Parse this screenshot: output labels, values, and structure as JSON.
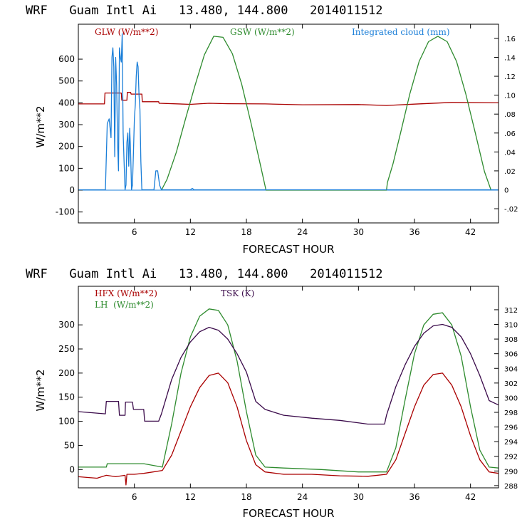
{
  "colors": {
    "red": "#aa0000",
    "green": "#2e8b2e",
    "blue": "#1a7ed8",
    "purple": "#3a0a4a"
  },
  "chart_data": [
    {
      "id": "top",
      "type": "line",
      "title": "WRF   Guam Intl Ai   13.480, 144.800   2014011512",
      "xlabel": "FORECAST HOUR",
      "ylabel": "W/m**2",
      "xlim": [
        0,
        45
      ],
      "ylim": [
        -150,
        760
      ],
      "y2lim": [
        -0.035,
        0.175
      ],
      "xticks": [
        6,
        12,
        18,
        24,
        30,
        36,
        42
      ],
      "yticks": [
        -100,
        0,
        100,
        200,
        300,
        400,
        500,
        600
      ],
      "y2ticks": [
        -0.02,
        0,
        0.02,
        0.04,
        0.06,
        0.08,
        0.1,
        0.12,
        0.14,
        0.16
      ],
      "y2ticklabels": [
        "-.02",
        "0",
        ".02",
        ".04",
        ".06",
        ".08",
        ".10",
        ".12",
        ".14",
        ".16"
      ],
      "legend": [
        {
          "label": "GLW (W/m**2)",
          "color": "#aa0000"
        },
        {
          "label": "GSW (W/m**2)",
          "color": "#2e8b2e"
        },
        {
          "label": "Integrated cloud (mm)",
          "color": "#1a7ed8"
        }
      ],
      "series": [
        {
          "name": "GLW",
          "color": "#aa0000",
          "axis": "left",
          "x": [
            0,
            2.8,
            2.85,
            4.6,
            4.65,
            5.2,
            5.25,
            5.6,
            5.65,
            6.8,
            6.85,
            8.6,
            8.65,
            12,
            14,
            16,
            20,
            24,
            30,
            33,
            36,
            40,
            45
          ],
          "y": [
            395,
            395,
            445,
            445,
            412,
            412,
            448,
            448,
            440,
            440,
            405,
            405,
            398,
            393,
            398,
            396,
            395,
            391,
            392,
            388,
            394,
            402,
            400
          ]
        },
        {
          "name": "GSW",
          "color": "#2e8b2e",
          "axis": "left",
          "x": [
            8.9,
            9.5,
            10.5,
            11.5,
            12.5,
            13.5,
            14.5,
            15.5,
            16.5,
            17.5,
            18.5,
            19.5,
            20.1,
            33.0,
            33.1,
            33.7,
            34.5,
            35.5,
            36.5,
            37.5,
            38.5,
            39.5,
            40.5,
            41.5,
            42.5,
            43.5,
            44.2
          ],
          "y": [
            0,
            50,
            175,
            330,
            480,
            620,
            705,
            700,
            625,
            485,
            305,
            115,
            0,
            0,
            35,
            120,
            260,
            440,
            590,
            680,
            705,
            680,
            590,
            440,
            265,
            85,
            0
          ]
        },
        {
          "name": "Integrated cloud",
          "color": "#1a7ed8",
          "axis": "right",
          "x": [
            0,
            2.9,
            3.1,
            3.3,
            3.5,
            3.6,
            3.7,
            3.8,
            3.9,
            4.0,
            4.1,
            4.2,
            4.3,
            4.4,
            4.5,
            4.6,
            4.7,
            4.8,
            4.9,
            5.0,
            5.1,
            5.2,
            5.3,
            5.4,
            5.5,
            5.6,
            5.7,
            5.8,
            5.9,
            6.0,
            6.1,
            6.2,
            6.3,
            6.4,
            6.5,
            6.6,
            6.7,
            6.8,
            6.9,
            7.0,
            7.1,
            8.1,
            8.3,
            8.5,
            8.7,
            8.9,
            12,
            12.2,
            12.4,
            45
          ],
          "y": [
            0,
            0,
            0.07,
            0.075,
            0.055,
            0.14,
            0.15,
            0.13,
            0.035,
            0.14,
            0.11,
            0.05,
            0.02,
            0.15,
            0.14,
            0.135,
            0.165,
            0.06,
            0.03,
            0,
            0.005,
            0.05,
            0.06,
            0.025,
            0.065,
            0.04,
            0,
            0.005,
            0.04,
            0.075,
            0.09,
            0.12,
            0.135,
            0.13,
            0.1,
            0.085,
            0.03,
            0,
            0,
            0,
            0,
            0,
            0.02,
            0.02,
            0.005,
            0,
            0,
            0.0015,
            0,
            0
          ]
        }
      ]
    },
    {
      "id": "bottom",
      "type": "line",
      "title": "WRF   Guam Intl Ai   13.480, 144.800   2014011512",
      "xlabel": "FORECAST HOUR",
      "ylabel": "W/m**2",
      "xlim": [
        0,
        45
      ],
      "ylim": [
        -38,
        380
      ],
      "y2lim": [
        287.7,
        315.2
      ],
      "xticks": [
        6,
        12,
        18,
        24,
        30,
        36,
        42
      ],
      "yticks": [
        0,
        50,
        100,
        150,
        200,
        250,
        300
      ],
      "y2ticks": [
        288,
        290,
        292,
        294,
        296,
        298,
        300,
        302,
        304,
        306,
        308,
        310,
        312
      ],
      "legend": [
        {
          "label": "HFX (W/m**2)",
          "color": "#aa0000"
        },
        {
          "label": "LH  (W/m**2)",
          "color": "#2e8b2e"
        },
        {
          "label": "TSK (K)",
          "color": "#3a0a4a"
        }
      ],
      "series": [
        {
          "name": "HFX",
          "color": "#aa0000",
          "axis": "left",
          "x": [
            0,
            2,
            3,
            4,
            5,
            5.1,
            5.2,
            6,
            7,
            8,
            9,
            10,
            11,
            12,
            13,
            14,
            15,
            16,
            17,
            18,
            19,
            20,
            22,
            25,
            28,
            31,
            33,
            34,
            35,
            36,
            37,
            38,
            39,
            40,
            41,
            42,
            43,
            44,
            45
          ],
          "y": [
            -15,
            -18,
            -12,
            -15,
            -12,
            -32,
            -10,
            -10,
            -8,
            -5,
            -2,
            30,
            80,
            130,
            170,
            195,
            200,
            180,
            130,
            60,
            10,
            -5,
            -10,
            -10,
            -13,
            -14,
            -10,
            20,
            75,
            130,
            175,
            197,
            200,
            175,
            130,
            70,
            20,
            -5,
            -8
          ]
        },
        {
          "name": "LH",
          "color": "#2e8b2e",
          "axis": "left",
          "x": [
            0,
            3,
            3.1,
            7,
            9,
            10,
            11,
            12,
            13,
            14,
            15,
            16,
            17,
            18,
            19,
            20,
            22,
            26,
            30,
            33,
            34,
            35,
            36,
            37,
            38,
            39,
            40,
            41,
            42,
            43,
            44,
            45
          ],
          "y": [
            5,
            5,
            12,
            12,
            5,
            95,
            200,
            275,
            318,
            333,
            330,
            300,
            225,
            120,
            30,
            5,
            3,
            0,
            -5,
            -5,
            45,
            145,
            240,
            300,
            322,
            325,
            300,
            235,
            130,
            40,
            5,
            3
          ]
        },
        {
          "name": "TSK",
          "color": "#3a0a4a",
          "axis": "right",
          "x": [
            0,
            2.9,
            3.0,
            4.3,
            4.4,
            5.0,
            5.05,
            5.8,
            5.9,
            7.0,
            7.1,
            8.6,
            8.9,
            10,
            11,
            12,
            13,
            14,
            15,
            16,
            17,
            18,
            19,
            20,
            22,
            25,
            28,
            31,
            32.8,
            33.0,
            34,
            35,
            36,
            37,
            38,
            39,
            40,
            41,
            42,
            43,
            44,
            45
          ],
          "y": [
            298.1,
            297.8,
            299.5,
            299.5,
            297.6,
            297.6,
            299.4,
            299.4,
            298.4,
            298.4,
            296.8,
            296.8,
            297.8,
            302.5,
            305.5,
            307.6,
            309.0,
            309.6,
            309.2,
            308.0,
            306.0,
            303.5,
            299.5,
            298.4,
            297.6,
            297.2,
            296.9,
            296.4,
            296.4,
            297.6,
            301.5,
            304.5,
            307.0,
            308.8,
            309.8,
            310.0,
            309.6,
            308.3,
            306.0,
            303.0,
            299.6,
            299.0
          ]
        }
      ]
    }
  ]
}
